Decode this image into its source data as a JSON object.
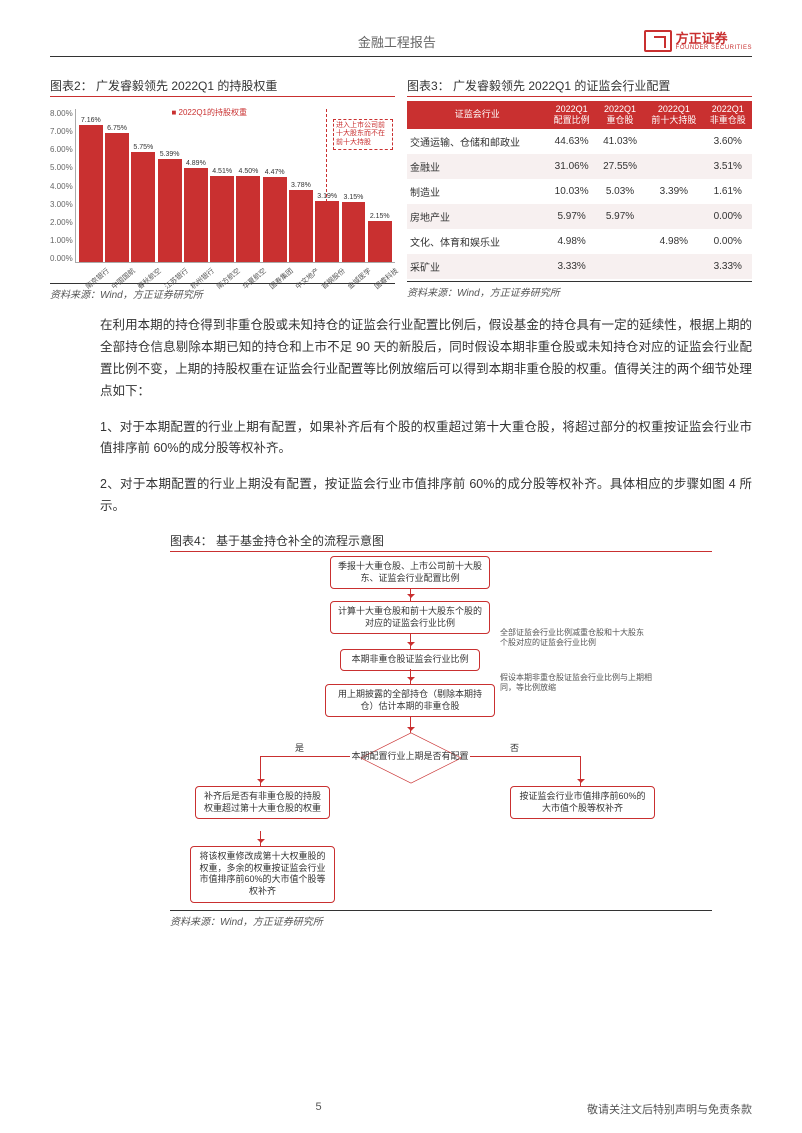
{
  "header": {
    "title": "金融工程报告",
    "logo_cn": "方正证券",
    "logo_en": "FOUNDER SECURITIES"
  },
  "fig2": {
    "title": "图表2：  广发睿毅领先 2022Q1 的持股权重",
    "legend": "2022Q1的持股权重",
    "note": "进入上市公司前十大股东而不在前十大持股",
    "ytick_labels": [
      "8.00%",
      "7.00%",
      "6.00%",
      "5.00%",
      "4.00%",
      "3.00%",
      "2.00%",
      "1.00%",
      "0.00%"
    ],
    "ymax": 8.0,
    "bars": [
      {
        "label": "南京银行",
        "value": 7.16,
        "display": "7.16%"
      },
      {
        "label": "中国国航",
        "value": 6.75,
        "display": "6.75%"
      },
      {
        "label": "春秋航空",
        "value": 5.75,
        "display": "5.75%"
      },
      {
        "label": "江苏银行",
        "value": 5.39,
        "display": "5.39%"
      },
      {
        "label": "杭州银行",
        "value": 4.89,
        "display": "4.89%"
      },
      {
        "label": "南方航空",
        "value": 4.51,
        "display": "4.51%"
      },
      {
        "label": "华夏航空",
        "value": 4.5,
        "display": "4.50%"
      },
      {
        "label": "国寿集团",
        "value": 4.47,
        "display": "4.47%"
      },
      {
        "label": "中文地产",
        "value": 3.78,
        "display": "3.78%"
      },
      {
        "label": "首钢股份",
        "value": 3.19,
        "display": "3.19%"
      },
      {
        "label": "金域医学",
        "value": 3.15,
        "display": "3.15%"
      },
      {
        "label": "国睿科技",
        "value": 2.15,
        "display": "2.15%"
      }
    ],
    "bar_color": "#c93030",
    "source": "资料来源：Wind，方正证券研究所"
  },
  "fig3": {
    "title": "图表3：  广发睿毅领先 2022Q1 的证监会行业配置",
    "headers": [
      "证监会行业",
      "2022Q1\n配置比例",
      "2022Q1\n重仓股",
      "2022Q1\n前十大持股",
      "2022Q1\n非重仓股"
    ],
    "rows": [
      [
        "交通运输、仓储和邮政业",
        "44.63%",
        "41.03%",
        "",
        "3.60%"
      ],
      [
        "金融业",
        "31.06%",
        "27.55%",
        "",
        "3.51%"
      ],
      [
        "制造业",
        "10.03%",
        "5.03%",
        "3.39%",
        "1.61%"
      ],
      [
        "房地产业",
        "5.97%",
        "5.97%",
        "",
        "0.00%"
      ],
      [
        "文化、体育和娱乐业",
        "4.98%",
        "",
        "4.98%",
        "0.00%"
      ],
      [
        "采矿业",
        "3.33%",
        "",
        "",
        "3.33%"
      ]
    ],
    "header_bg": "#c93030",
    "source": "资料来源：Wind，方正证券研究所"
  },
  "body": {
    "p1": "在利用本期的持仓得到非重仓股或未知持仓的证监会行业配置比例后，假设基金的持仓具有一定的延续性，根据上期的全部持仓信息剔除本期已知的持仓和上市不足 90 天的新股后，同时假设本期非重仓股或未知持仓对应的证监会行业配置比例不变，上期的持股权重在证监会行业配置等比例放缩后可以得到本期非重仓股的权重。值得关注的两个细节处理点如下：",
    "p2": "1、对于本期配置的行业上期有配置，如果补齐后有个股的权重超过第十大重仓股，将超过部分的权重按证监会行业市值排序前 60%的成分股等权补齐。",
    "p3": "2、对于本期配置的行业上期没有配置，按证监会行业市值排序前 60%的成分股等权补齐。具体相应的步骤如图 4 所示。"
  },
  "fig4": {
    "title": "图表4：  基于基金持仓补全的流程示意图",
    "box1": "季报十大重仓股、上市公司前十大股东、证监会行业配置比例",
    "box2": "计算十大重仓股和前十大股东个股的对应的证监会行业比例",
    "desc2": "全部证监会行业比例减重仓股和十大股东个股对应的证监会行业比例",
    "box3": "本期非重仓股证监会行业比例",
    "desc3": "假设本期非重仓股证监会行业比例与上期相同，等比例放缩",
    "box4": "用上期披露的全部持仓（剔除本期持仓）估计本期的非重仓股",
    "diamond": "本期配置行业上期是否有配置",
    "yes": "是",
    "no": "否",
    "boxL1": "补齐后是否有非重仓股的持股权重超过第十大重仓股的权重",
    "boxL2": "将该权重修改成第十大权重股的权重，多余的权重按证监会行业市值排序前60%的大市值个股等权补齐",
    "boxR": "按证监会行业市值排序前60%的大市值个股等权补齐",
    "source": "资料来源：Wind，方正证券研究所"
  },
  "footer": {
    "page": "5",
    "disclaimer": "敬请关注文后特别声明与免责条款"
  }
}
